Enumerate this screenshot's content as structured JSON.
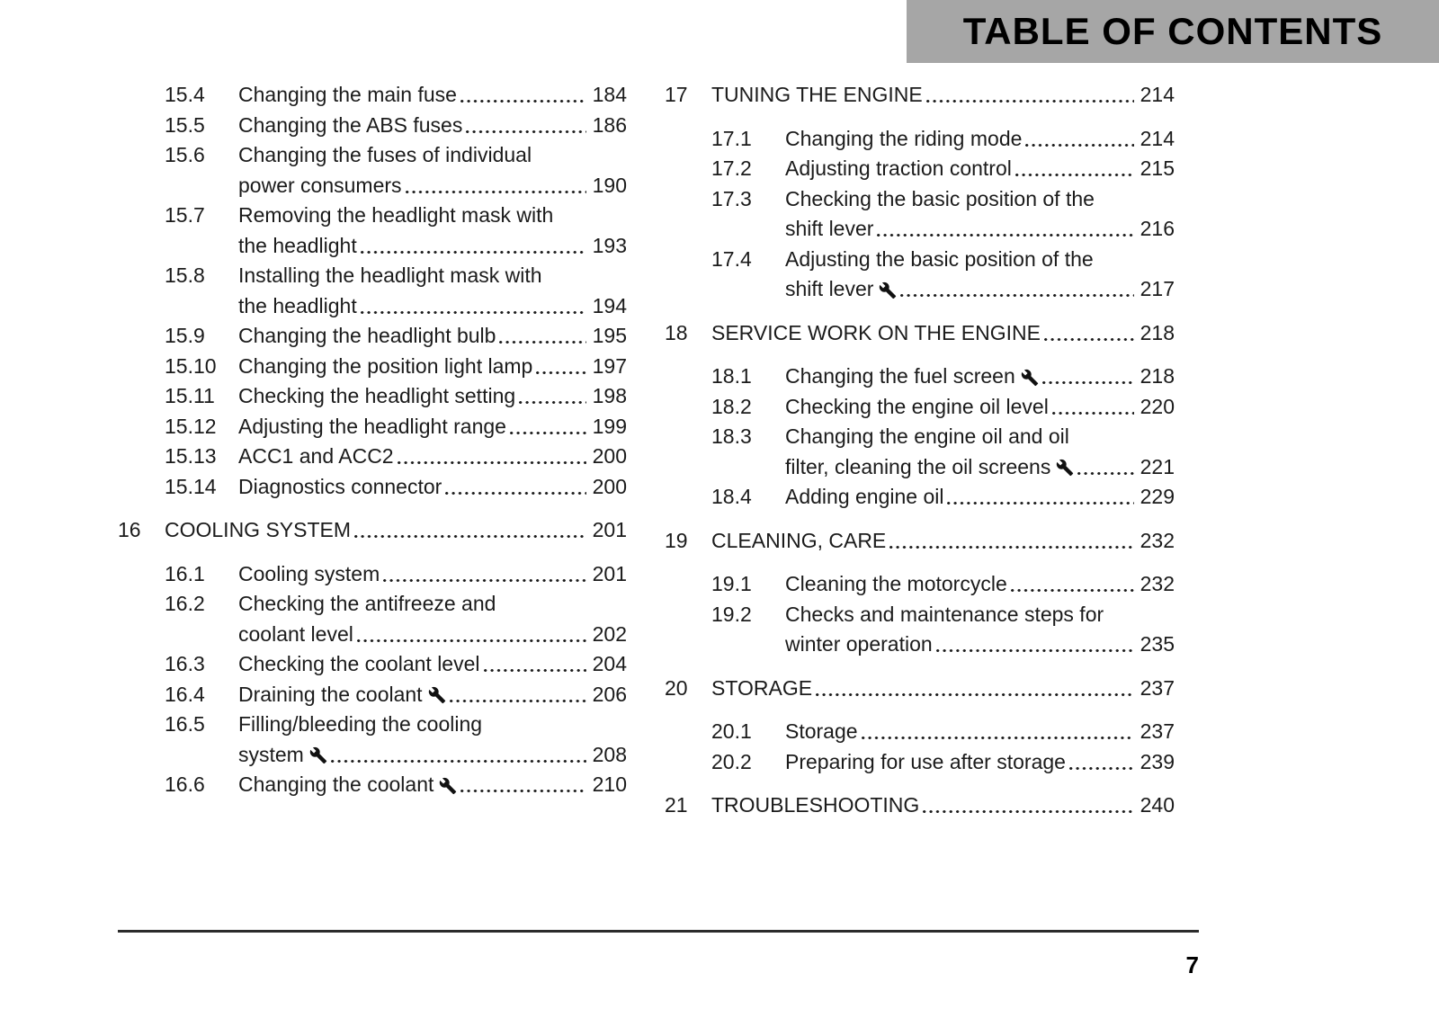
{
  "header": {
    "title": "TABLE OF CONTENTS"
  },
  "footer": {
    "page_number": "7"
  },
  "colors": {
    "header_bg": "#a6a6a6",
    "header_text": "#000000",
    "body_text": "#1b1b1b"
  },
  "toc": {
    "left_column": [
      {
        "num": "15.4",
        "level": "sub",
        "lines": [
          "Changing the main fuse"
        ],
        "page": "184"
      },
      {
        "num": "15.5",
        "level": "sub",
        "lines": [
          "Changing the ABS fuses"
        ],
        "page": "186"
      },
      {
        "num": "15.6",
        "level": "sub",
        "lines": [
          "Changing the fuses of individual",
          "power consumers"
        ],
        "page": "190"
      },
      {
        "num": "15.7",
        "level": "sub",
        "lines": [
          "Removing the headlight mask with",
          "the headlight"
        ],
        "page": "193"
      },
      {
        "num": "15.8",
        "level": "sub",
        "lines": [
          "Installing the headlight mask with",
          "the headlight"
        ],
        "page": "194"
      },
      {
        "num": "15.9",
        "level": "sub",
        "lines": [
          "Changing the headlight bulb"
        ],
        "page": "195"
      },
      {
        "num": "15.10",
        "level": "sub",
        "lines": [
          "Changing the position light lamp"
        ],
        "page": "197"
      },
      {
        "num": "15.11",
        "level": "sub",
        "lines": [
          "Checking the headlight setting"
        ],
        "page": "198"
      },
      {
        "num": "15.12",
        "level": "sub",
        "lines": [
          "Adjusting the headlight range"
        ],
        "page": "199"
      },
      {
        "num": "15.13",
        "level": "sub",
        "lines": [
          "ACC1 and ACC2"
        ],
        "page": "200"
      },
      {
        "num": "15.14",
        "level": "sub",
        "lines": [
          "Diagnostics connector"
        ],
        "page": "200"
      },
      {
        "num": "16",
        "level": "chapter",
        "lines": [
          "COOLING SYSTEM"
        ],
        "page": "201"
      },
      {
        "num": "16.1",
        "level": "sub",
        "lines": [
          "Cooling system"
        ],
        "page": "201"
      },
      {
        "num": "16.2",
        "level": "sub",
        "lines": [
          "Checking the antifreeze and",
          "coolant level"
        ],
        "page": "202"
      },
      {
        "num": "16.3",
        "level": "sub",
        "lines": [
          "Checking the coolant level"
        ],
        "page": "204"
      },
      {
        "num": "16.4",
        "level": "sub",
        "lines": [
          "Draining the coolant"
        ],
        "wrench": true,
        "page": "206"
      },
      {
        "num": "16.5",
        "level": "sub",
        "lines": [
          "Filling/bleeding the cooling",
          "system"
        ],
        "wrench": true,
        "page": "208"
      },
      {
        "num": "16.6",
        "level": "sub",
        "lines": [
          "Changing the coolant"
        ],
        "wrench": true,
        "page": "210"
      }
    ],
    "right_column": [
      {
        "num": "17",
        "level": "chapter",
        "lines": [
          "TUNING THE ENGINE"
        ],
        "page": "214"
      },
      {
        "num": "17.1",
        "level": "sub",
        "lines": [
          "Changing the riding mode"
        ],
        "page": "214"
      },
      {
        "num": "17.2",
        "level": "sub",
        "lines": [
          "Adjusting traction control"
        ],
        "page": "215"
      },
      {
        "num": "17.3",
        "level": "sub",
        "lines": [
          "Checking the basic position of the",
          "shift lever"
        ],
        "page": "216"
      },
      {
        "num": "17.4",
        "level": "sub",
        "lines": [
          "Adjusting the basic position of the",
          "shift lever"
        ],
        "wrench": true,
        "page": "217"
      },
      {
        "num": "18",
        "level": "chapter",
        "lines": [
          "SERVICE WORK ON THE ENGINE"
        ],
        "page": "218"
      },
      {
        "num": "18.1",
        "level": "sub",
        "lines": [
          "Changing the fuel screen"
        ],
        "wrench": true,
        "page": "218"
      },
      {
        "num": "18.2",
        "level": "sub",
        "lines": [
          "Checking the engine oil level"
        ],
        "page": "220"
      },
      {
        "num": "18.3",
        "level": "sub",
        "lines": [
          "Changing the engine oil and oil",
          "filter, cleaning the oil screens"
        ],
        "wrench": true,
        "page": "221"
      },
      {
        "num": "18.4",
        "level": "sub",
        "lines": [
          "Adding engine oil"
        ],
        "page": "229"
      },
      {
        "num": "19",
        "level": "chapter",
        "lines": [
          "CLEANING, CARE"
        ],
        "page": "232"
      },
      {
        "num": "19.1",
        "level": "sub",
        "lines": [
          "Cleaning the motorcycle"
        ],
        "page": "232"
      },
      {
        "num": "19.2",
        "level": "sub",
        "lines": [
          "Checks and maintenance steps for",
          "winter operation"
        ],
        "page": "235"
      },
      {
        "num": "20",
        "level": "chapter",
        "lines": [
          "STORAGE"
        ],
        "page": "237"
      },
      {
        "num": "20.1",
        "level": "sub",
        "lines": [
          "Storage"
        ],
        "page": "237"
      },
      {
        "num": "20.2",
        "level": "sub",
        "lines": [
          "Preparing for use after storage"
        ],
        "page": "239"
      },
      {
        "num": "21",
        "level": "chapter",
        "lines": [
          "TROUBLESHOOTING"
        ],
        "page": "240"
      }
    ]
  }
}
